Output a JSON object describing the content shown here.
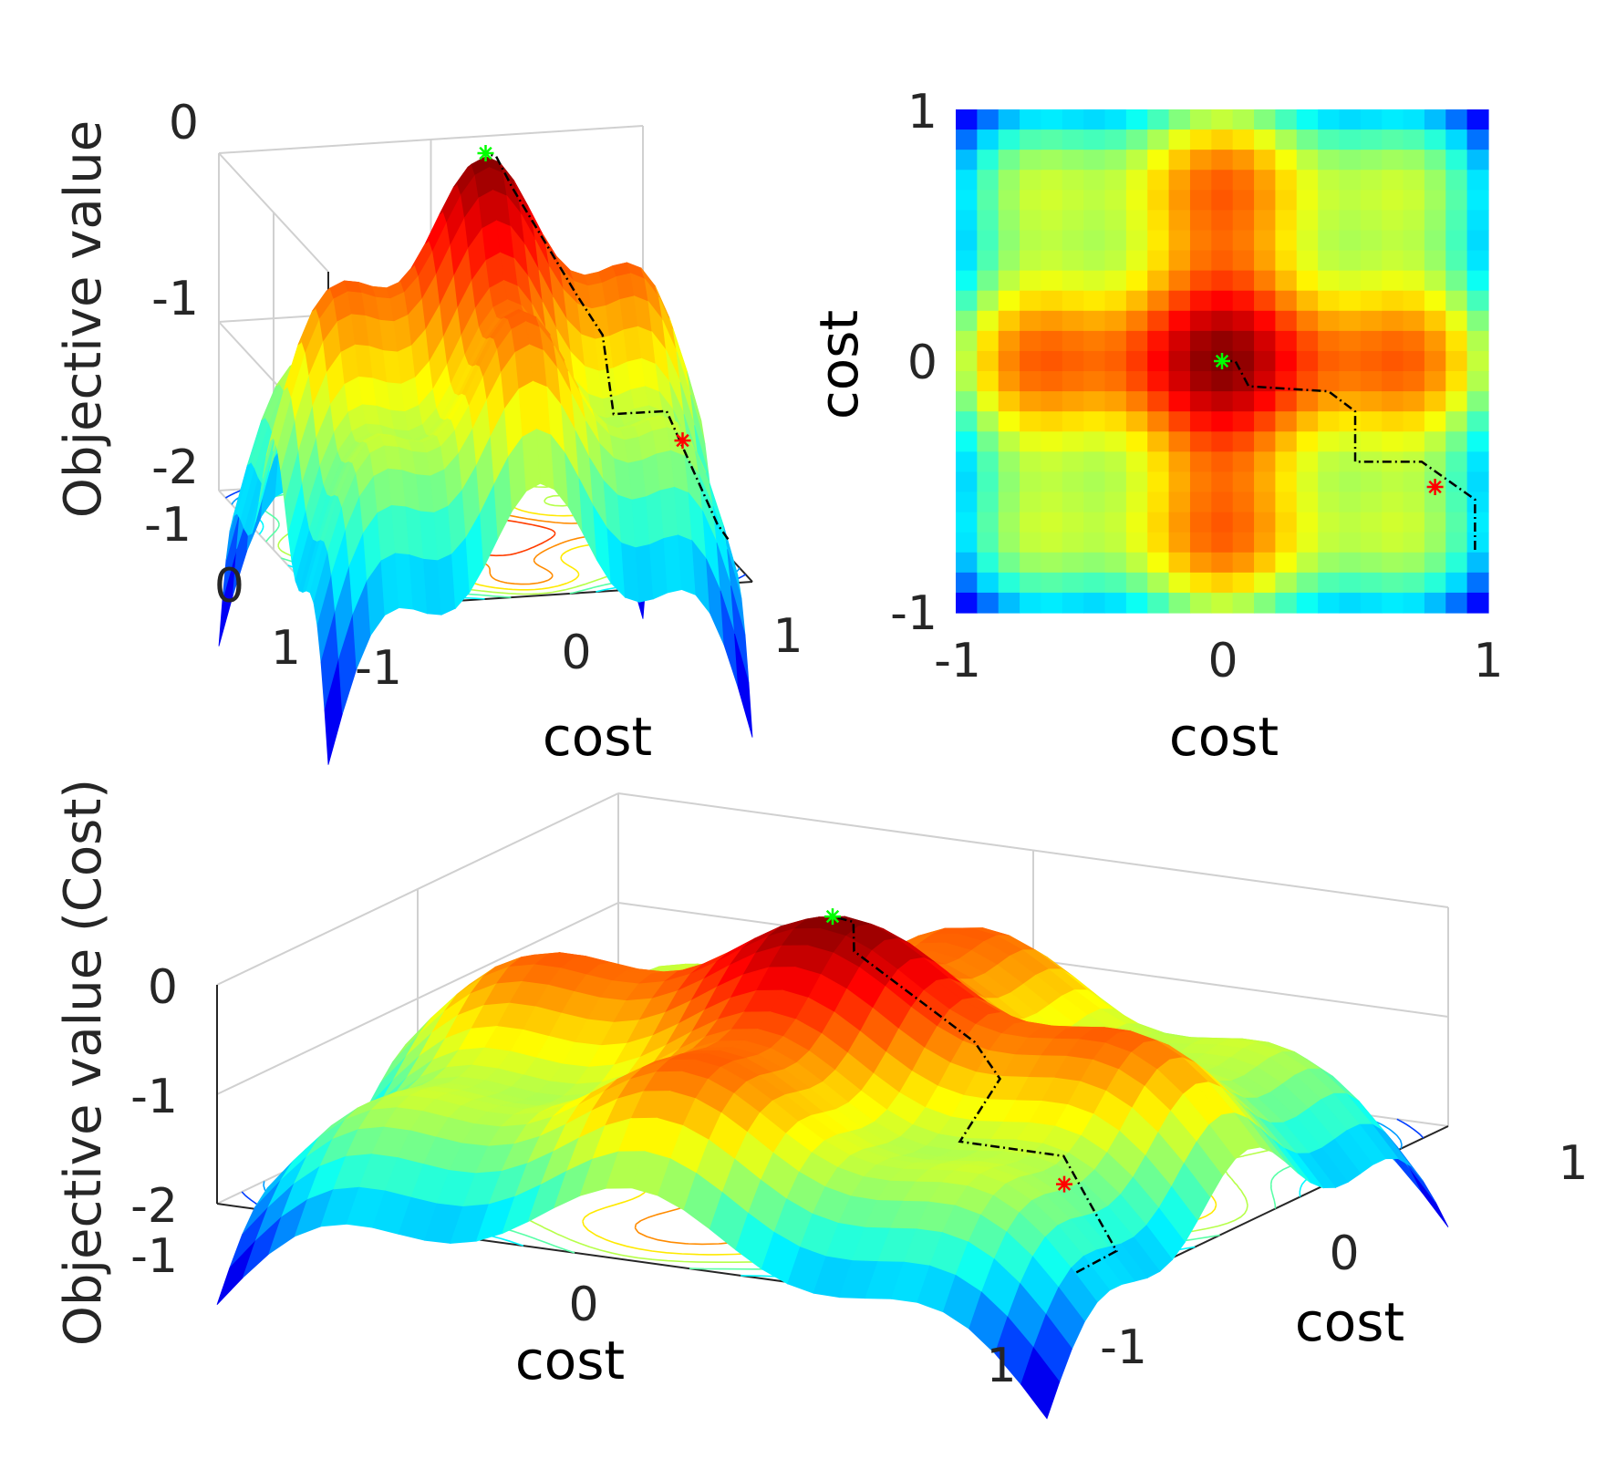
{
  "chart_data": [
    {
      "id": "surface-top-left",
      "type": "surface",
      "view": "3d-side",
      "xlabel": "cost",
      "ylabel": "",
      "zlabel": "Objective value",
      "xticks": [
        "-1",
        "0",
        "1"
      ],
      "yticks": [
        "-1",
        "0",
        "1"
      ],
      "zticks": [
        "0",
        "-1",
        "-2"
      ],
      "xlim": [
        -1,
        1
      ],
      "ylim": [
        -1,
        1
      ],
      "zlim": [
        -2,
        0
      ],
      "grid": true,
      "colormap": "jet",
      "surface_formula": "z = 0.25*(cos(8x)+cos(8y)) - 1.3*(x^2+y^2) - 0.25",
      "contours_below": true,
      "start_point": {
        "x": 0.8,
        "y": -0.5,
        "color": "#ff0000",
        "marker": "*"
      },
      "best_point": {
        "x": 0.0,
        "y": 0.0,
        "color": "#00ff00",
        "marker": "*"
      },
      "search_path_style": "black dash-dot"
    },
    {
      "id": "heatmap-top-right",
      "type": "heatmap",
      "xlabel": "cost",
      "ylabel": "cost",
      "xticks": [
        "-1",
        "0",
        "1"
      ],
      "yticks": [
        "1",
        "0",
        "-1"
      ],
      "xlim": [
        -1,
        1
      ],
      "ylim": [
        -1,
        1
      ],
      "grid_size": 25,
      "colormap": "jet",
      "start_point": {
        "x": 0.8,
        "y": -0.5,
        "color": "#ff0000",
        "marker": "*"
      },
      "best_point": {
        "x": 0.0,
        "y": 0.0,
        "color": "#00ff00",
        "marker": "*"
      },
      "search_path": [
        [
          0.95,
          -0.75
        ],
        [
          0.95,
          -0.55
        ],
        [
          0.75,
          -0.4
        ],
        [
          0.5,
          -0.4
        ],
        [
          0.5,
          -0.2
        ],
        [
          0.4,
          -0.12
        ],
        [
          0.1,
          -0.1
        ],
        [
          0.05,
          0.0
        ],
        [
          0.0,
          0.0
        ]
      ]
    },
    {
      "id": "surface-bottom",
      "type": "surface",
      "view": "3d-wide",
      "xlabel": "cost",
      "ylabel": "cost",
      "zlabel": "Objective value (Cost)",
      "xticks": [
        "-1",
        "0",
        "1"
      ],
      "yticks": [
        "-1",
        "0",
        "1"
      ],
      "zticks": [
        "0",
        "-1",
        "-2"
      ],
      "xlim": [
        -1,
        1
      ],
      "ylim": [
        -1,
        1
      ],
      "zlim": [
        -2,
        0
      ],
      "grid": true,
      "colormap": "jet",
      "contours_below": true,
      "start_point": {
        "x": 0.8,
        "y": -0.5,
        "color": "#ff0000",
        "marker": "*"
      },
      "best_point": {
        "x": 0.0,
        "y": 0.0,
        "color": "#00ff00",
        "marker": "*"
      }
    }
  ]
}
